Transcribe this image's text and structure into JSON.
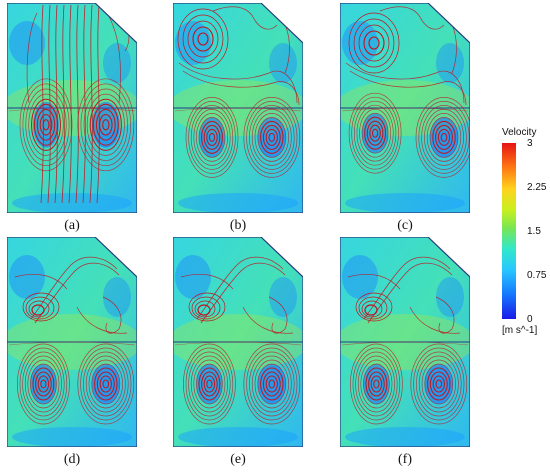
{
  "panels": [
    {
      "label": "(a)",
      "bottom": "large",
      "upper": "jets",
      "eyeL": [
        0.3,
        0.58
      ],
      "eyeR": [
        0.76,
        0.58
      ]
    },
    {
      "label": "(b)",
      "bottom": "twin",
      "upper": "vortexL",
      "eyeL": [
        0.3,
        0.64
      ],
      "eyeR": [
        0.76,
        0.64
      ]
    },
    {
      "label": "(c)",
      "bottom": "twin",
      "upper": "vortexL",
      "eyeL": [
        0.27,
        0.62
      ],
      "eyeR": [
        0.8,
        0.64
      ]
    },
    {
      "label": "(d)",
      "bottom": "twin",
      "upper": "spiral",
      "eyeL": [
        0.28,
        0.7
      ],
      "eyeR": [
        0.76,
        0.7
      ]
    },
    {
      "label": "(e)",
      "bottom": "twin",
      "upper": "spiral",
      "eyeL": [
        0.28,
        0.7
      ],
      "eyeR": [
        0.76,
        0.7
      ]
    },
    {
      "label": "(f)",
      "bottom": "twin",
      "upper": "spiral",
      "eyeL": [
        0.28,
        0.7
      ],
      "eyeR": [
        0.76,
        0.7
      ]
    }
  ],
  "colorbar": {
    "title": "Velocity",
    "units": "[m s^-1]",
    "ticks": [
      {
        "label": "3",
        "value": 3
      },
      {
        "label": "2.25",
        "value": 2.25
      },
      {
        "label": "1.5",
        "value": 1.5
      },
      {
        "label": "0.75",
        "value": 0.75
      },
      {
        "label": "0",
        "value": 0
      }
    ],
    "min": 0,
    "max": 3
  },
  "colors": {
    "streamline": "#c0141e",
    "outline": "#2a3a7a",
    "field_low": "#1478ff",
    "field_mid": "#32e8c8",
    "field_high": "#c8f01e"
  }
}
